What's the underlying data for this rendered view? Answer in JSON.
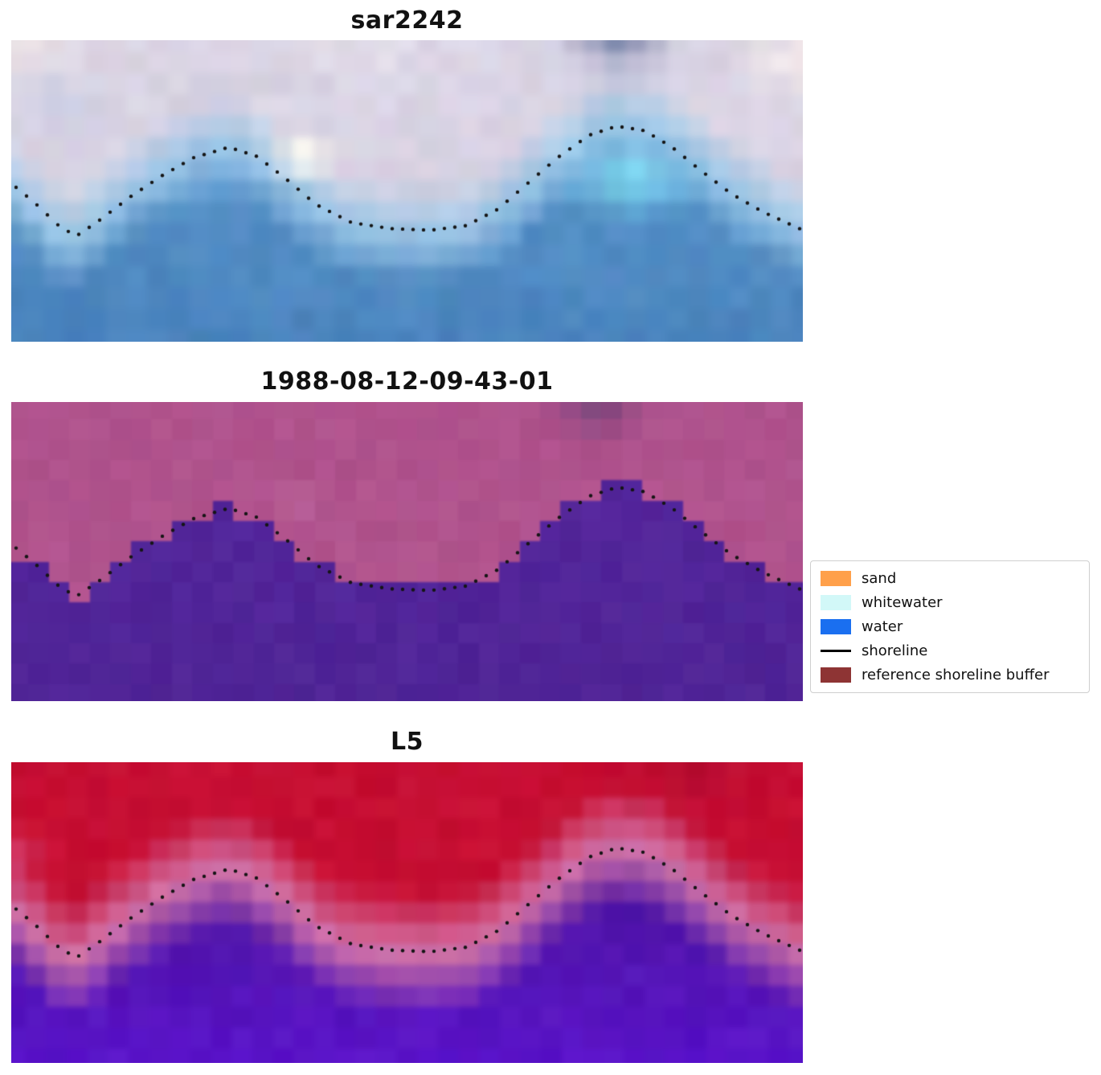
{
  "chart_data": {
    "type": "heatmap",
    "description": "Three stacked coastal satellite image panels of the same scene, each overlaid with a black dotted detected shoreline; classification legend at right.",
    "shoreline": {
      "dot_color": "#151515",
      "points": [
        [
          0,
          0.475
        ],
        [
          0.03,
          0.54
        ],
        [
          0.06,
          0.615
        ],
        [
          0.082,
          0.65
        ],
        [
          0.11,
          0.6
        ],
        [
          0.15,
          0.52
        ],
        [
          0.19,
          0.45
        ],
        [
          0.23,
          0.39
        ],
        [
          0.275,
          0.355
        ],
        [
          0.31,
          0.385
        ],
        [
          0.345,
          0.455
        ],
        [
          0.385,
          0.545
        ],
        [
          0.43,
          0.605
        ],
        [
          0.48,
          0.625
        ],
        [
          0.53,
          0.63
        ],
        [
          0.575,
          0.615
        ],
        [
          0.615,
          0.56
        ],
        [
          0.65,
          0.48
        ],
        [
          0.69,
          0.39
        ],
        [
          0.73,
          0.315
        ],
        [
          0.765,
          0.285
        ],
        [
          0.8,
          0.3
        ],
        [
          0.835,
          0.355
        ],
        [
          0.87,
          0.43
        ],
        [
          0.91,
          0.51
        ],
        [
          0.95,
          0.57
        ],
        [
          1,
          0.63
        ]
      ]
    },
    "panels": [
      {
        "title": "sar2242",
        "land_color": "#d9d3e3",
        "mid_color": "#9cc6e6",
        "water_color": "#5e9ccf",
        "water_color2": "#4a83bd",
        "soft": 0.16,
        "noise": 6,
        "seed": 3,
        "blur": 5,
        "patches": [
          {
            "u": 0.02,
            "v": 0.06,
            "r": 0.2,
            "color": "#f3e8e8",
            "a": 0.7
          },
          {
            "u": 0.45,
            "v": 0.05,
            "r": 0.25,
            "color": "#eae4ee",
            "a": 0.45
          },
          {
            "u": 0.98,
            "v": 0.08,
            "r": 0.18,
            "color": "#f7edec",
            "a": 0.75
          },
          {
            "u": 0.76,
            "v": 0.03,
            "r": 0.13,
            "color": "#6d7ca3",
            "a": 0.8
          },
          {
            "u": 0.37,
            "v": 0.39,
            "r": 0.09,
            "color": "#fffef0",
            "a": 0.95
          },
          {
            "u": 0.78,
            "v": 0.46,
            "r": 0.16,
            "color": "#86e2f6",
            "a": 0.85
          },
          {
            "u": 0.07,
            "v": 0.22,
            "r": 0.15,
            "color": "#c4cfe9",
            "a": 0.5
          }
        ]
      },
      {
        "title": "1988-08-12-09-43-01",
        "land_color": "#b0538d",
        "mid_color": null,
        "water_color": "#55269d",
        "water_color2": "#4f2496",
        "soft": 0,
        "noise": 4,
        "seed": 11,
        "blur": 1,
        "patches": [
          {
            "u": 0.74,
            "v": 0.04,
            "r": 0.12,
            "color": "#714076",
            "a": 0.8
          },
          {
            "u": 0.36,
            "v": 0.33,
            "r": 0.07,
            "color": "#c676a6",
            "a": 0.6
          }
        ]
      },
      {
        "title": "L5",
        "land_color": "#c60e32",
        "mid_color": "#d173a8",
        "water_color": "#471885",
        "water_color2": "#5a13cb",
        "soft": 0.2,
        "noise": 5,
        "seed": 23,
        "blur": 3,
        "patches": [
          {
            "u": 0.86,
            "v": 0.05,
            "r": 0.16,
            "color": "#ad0d30",
            "a": 0.55
          },
          {
            "u": 0.01,
            "v": 0.32,
            "r": 0.1,
            "color": "#d4568a",
            "a": 0.55
          }
        ]
      }
    ],
    "legend": {
      "items": [
        {
          "label": "sand",
          "type": "patch",
          "color": "#ffa04a"
        },
        {
          "label": "whitewater",
          "type": "patch",
          "color": "#d2f8f8"
        },
        {
          "label": "water",
          "type": "patch",
          "color": "#1a6ff0"
        },
        {
          "label": "shoreline",
          "type": "line",
          "color": "#000000"
        },
        {
          "label": "reference shoreline buffer",
          "type": "patch",
          "color": "#8e3434"
        }
      ]
    }
  }
}
